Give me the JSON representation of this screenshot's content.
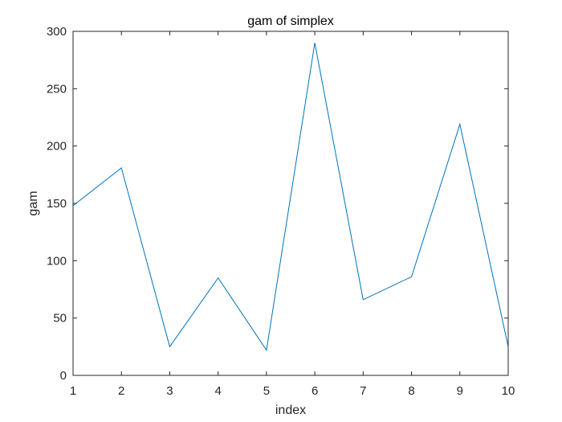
{
  "chart_data": {
    "type": "line",
    "title": "gam of simplex",
    "xlabel": "index",
    "ylabel": "gam",
    "xlim": [
      1,
      10
    ],
    "ylim": [
      0,
      300
    ],
    "xticks": [
      1,
      2,
      3,
      4,
      5,
      6,
      7,
      8,
      9,
      10
    ],
    "yticks": [
      0,
      50,
      100,
      150,
      200,
      250,
      300
    ],
    "grid": false,
    "series": [
      {
        "x": [
          1,
          2,
          3,
          4,
          5,
          6,
          7,
          8,
          9,
          10
        ],
        "values": [
          148,
          181,
          25,
          85,
          22,
          290,
          66,
          86,
          219,
          25
        ],
        "color": "#0072BD"
      }
    ]
  }
}
